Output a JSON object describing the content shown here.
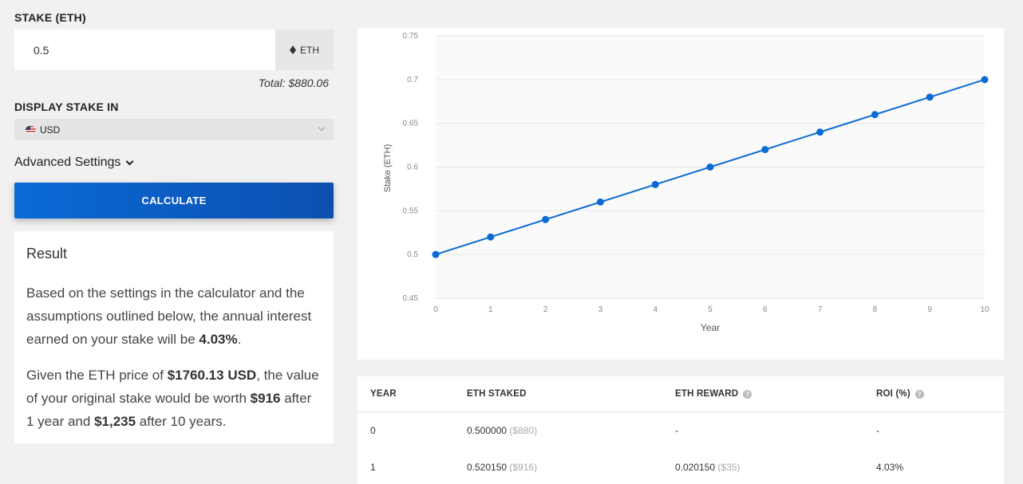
{
  "stake": {
    "label": "STAKE (ETH)",
    "value": "0.5",
    "unit": "ETH",
    "total": "Total: $880.06"
  },
  "display": {
    "label": "DISPLAY STAKE IN",
    "currency": "USD"
  },
  "advanced": {
    "label": "Advanced Settings"
  },
  "calculate": {
    "label": "CALCULATE"
  },
  "result": {
    "title": "Result",
    "p1_text": "Based on the settings in the calculator and the assumptions outlined below, the annual interest earned on your stake will be ",
    "p1_rate": "4.03%",
    "p1_end": ".",
    "p2_a": "Given the ETH price of ",
    "p2_price": "$1760.13 USD",
    "p2_b": ", the value of your original stake would be worth ",
    "p2_v1": "$916",
    "p2_c": " after 1 year and ",
    "p2_v10": "$1,235",
    "p2_d": " after 10 years."
  },
  "chart_data": {
    "type": "line",
    "title": "",
    "xlabel": "Year",
    "ylabel": "Stake (ETH)",
    "x": [
      0,
      1,
      2,
      3,
      4,
      5,
      6,
      7,
      8,
      9,
      10
    ],
    "series": [
      {
        "values": [
          0.5,
          0.52,
          0.54,
          0.56,
          0.58,
          0.6,
          0.62,
          0.64,
          0.66,
          0.68,
          0.7
        ]
      }
    ],
    "xlim": [
      0,
      10
    ],
    "ylim": [
      0.45,
      0.75
    ],
    "yticks": [
      "0.75",
      "0.7",
      "0.65",
      "0.6",
      "0.55",
      "0.5",
      "0.45"
    ],
    "grid": true,
    "color": "#0b6bd5"
  },
  "table": {
    "headers": [
      "YEAR",
      "ETH STAKED",
      "ETH REWARD",
      "ROI (%)"
    ],
    "help_icon": "?",
    "rows": [
      {
        "year": "0",
        "staked": "0.500000",
        "staked_usd": "($880)",
        "reward": "-",
        "reward_usd": "",
        "roi": "-"
      },
      {
        "year": "1",
        "staked": "0.520150",
        "staked_usd": "($916)",
        "reward": "0.020150",
        "reward_usd": "($35)",
        "roi": "4.03%"
      }
    ]
  }
}
